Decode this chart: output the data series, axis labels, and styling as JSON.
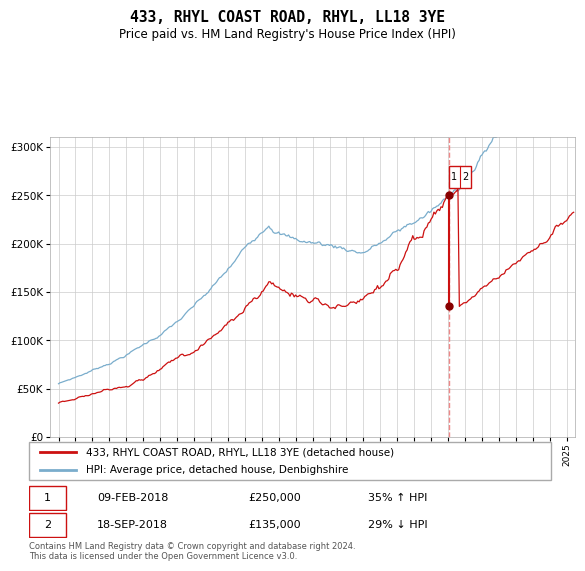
{
  "title": "433, RHYL COAST ROAD, RHYL, LL18 3YE",
  "subtitle": "Price paid vs. HM Land Registry's House Price Index (HPI)",
  "legend_line1": "433, RHYL COAST ROAD, RHYL, LL18 3YE (detached house)",
  "legend_line2": "HPI: Average price, detached house, Denbighshire",
  "transaction1_date": "09-FEB-2018",
  "transaction1_price": 250000,
  "transaction1_label": "1",
  "transaction1_pct": "35% ↑ HPI",
  "transaction2_date": "18-SEP-2018",
  "transaction2_price": 135000,
  "transaction2_label": "2",
  "transaction2_pct": "29% ↓ HPI",
  "footer": "Contains HM Land Registry data © Crown copyright and database right 2024.\nThis data is licensed under the Open Government Licence v3.0.",
  "hpi_color": "#7aadcc",
  "price_color": "#cc1111",
  "dot_color": "#880000",
  "vline_color": "#ee8888",
  "grid_color": "#cccccc",
  "bg_color": "#ffffff",
  "ylim": [
    0,
    310000
  ],
  "yticks": [
    0,
    50000,
    100000,
    150000,
    200000,
    250000,
    300000
  ],
  "start_year": 1995,
  "end_year": 2025
}
